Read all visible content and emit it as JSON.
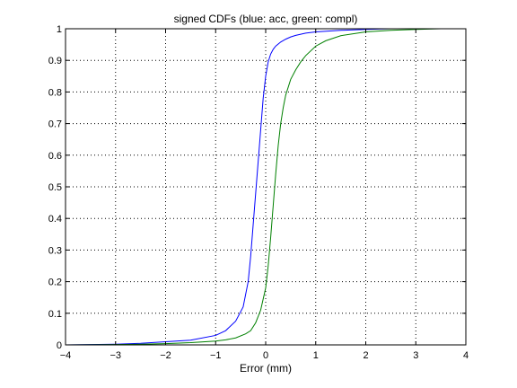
{
  "chart_data": {
    "type": "line",
    "title": "signed CDFs (blue: acc, green: compl)",
    "xlabel": "Error (mm)",
    "ylabel": "",
    "xlim": [
      -4,
      4
    ],
    "ylim": [
      0,
      1
    ],
    "xticks": [
      -4,
      -3,
      -2,
      -1,
      0,
      1,
      2,
      3,
      4
    ],
    "xtick_labels": [
      "−4",
      "−3",
      "−2",
      "−1",
      "0",
      "1",
      "2",
      "3",
      "4"
    ],
    "yticks": [
      0,
      0.1,
      0.2,
      0.3,
      0.4,
      0.5,
      0.6,
      0.7,
      0.8,
      0.9,
      1
    ],
    "ytick_labels": [
      "0",
      "0.1",
      "0.2",
      "0.3",
      "0.4",
      "0.5",
      "0.6",
      "0.7",
      "0.8",
      "0.9",
      "1"
    ],
    "grid": true,
    "series": [
      {
        "color": "#0000ff",
        "x": [
          -4,
          -3.5,
          -3,
          -2.5,
          -2,
          -1.5,
          -1,
          -0.8,
          -0.6,
          -0.45,
          -0.35,
          -0.3,
          -0.25,
          -0.2,
          -0.15,
          -0.1,
          -0.05,
          0,
          0.05,
          0.1,
          0.15,
          0.2,
          0.3,
          0.4,
          0.5,
          0.6,
          0.8,
          1,
          1.5,
          2,
          2.5,
          3,
          4
        ],
        "y": [
          0,
          0.001,
          0.002,
          0.005,
          0.01,
          0.015,
          0.03,
          0.045,
          0.075,
          0.12,
          0.2,
          0.28,
          0.38,
          0.48,
          0.58,
          0.68,
          0.78,
          0.85,
          0.895,
          0.92,
          0.935,
          0.945,
          0.958,
          0.967,
          0.974,
          0.979,
          0.986,
          0.99,
          0.995,
          0.998,
          1,
          1,
          1
        ]
      },
      {
        "color": "#008000",
        "x": [
          -4,
          -3,
          -2.5,
          -2,
          -1.5,
          -1,
          -0.8,
          -0.6,
          -0.4,
          -0.3,
          -0.2,
          -0.1,
          0,
          0.05,
          0.1,
          0.15,
          0.2,
          0.25,
          0.3,
          0.35,
          0.4,
          0.5,
          0.6,
          0.7,
          0.8,
          1,
          1.2,
          1.5,
          2,
          2.5,
          3,
          3.5,
          4
        ],
        "y": [
          0,
          0.001,
          0.002,
          0.004,
          0.007,
          0.012,
          0.016,
          0.022,
          0.035,
          0.045,
          0.07,
          0.11,
          0.18,
          0.25,
          0.34,
          0.44,
          0.54,
          0.63,
          0.7,
          0.75,
          0.79,
          0.84,
          0.87,
          0.895,
          0.915,
          0.945,
          0.962,
          0.978,
          0.99,
          0.995,
          0.998,
          1,
          1
        ]
      }
    ]
  }
}
